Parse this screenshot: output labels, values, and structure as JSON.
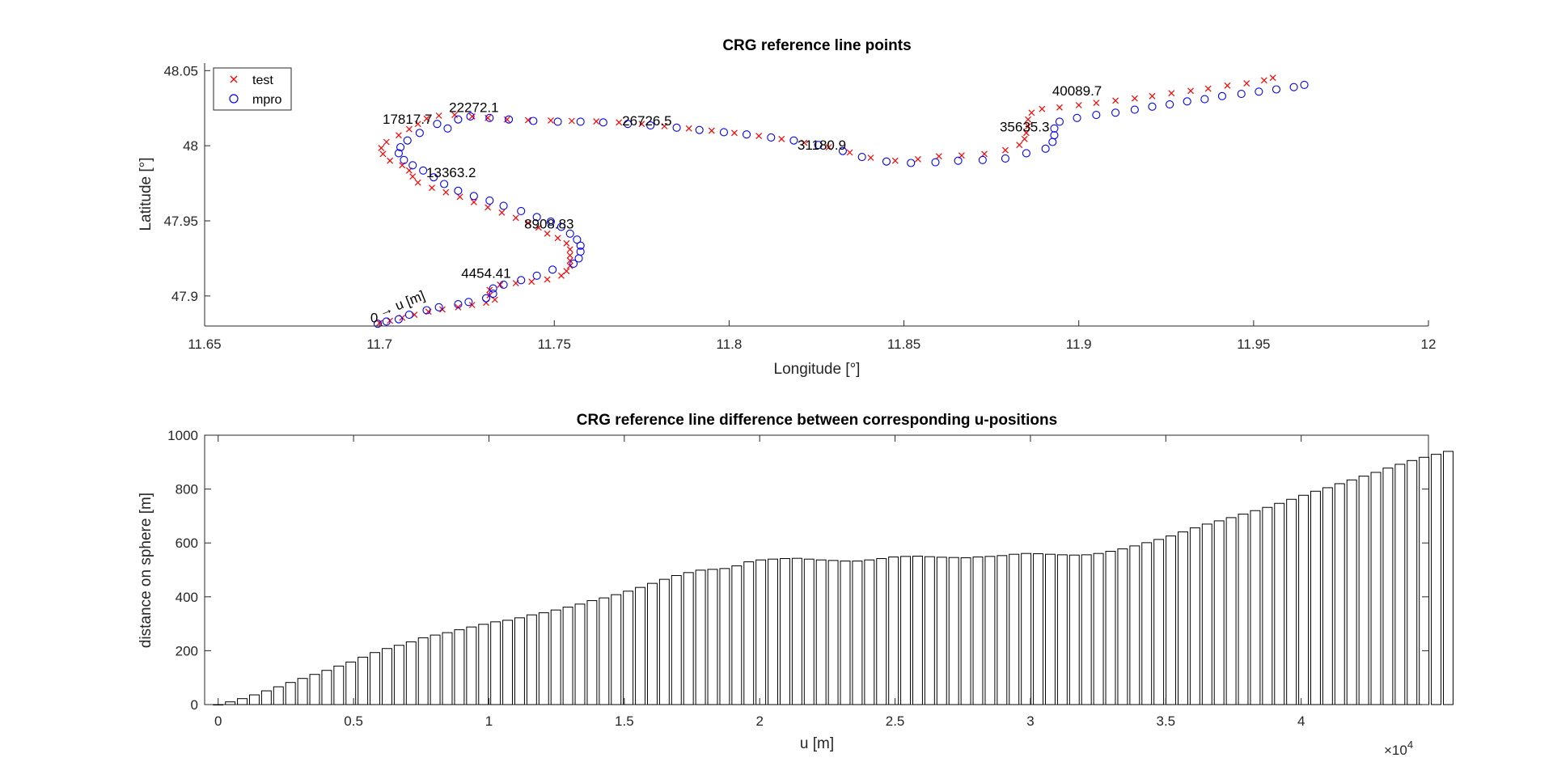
{
  "chart_data": [
    {
      "type": "scatter",
      "title": "CRG reference line points",
      "xlabel": "Longitude [°]",
      "ylabel": "Latitude [°]",
      "xlim": [
        11.65,
        12.0
      ],
      "ylim": [
        47.88,
        48.055
      ],
      "xticks": [
        11.65,
        11.7,
        11.75,
        11.8,
        11.85,
        11.9,
        11.95,
        12
      ],
      "xtick_labels": [
        "11.65",
        "11.7",
        "11.75",
        "11.8",
        "11.85",
        "11.9",
        "11.95",
        "12"
      ],
      "yticks": [
        47.9,
        47.95,
        48.0,
        48.05
      ],
      "ytick_labels": [
        "47.9",
        "47.95",
        "48",
        "48.05"
      ],
      "legend_position": "top-left",
      "grid": false,
      "series": [
        {
          "name": "test",
          "marker": "x",
          "color": "#ff0000",
          "points": [
            [
              11.7,
              47.882
            ],
            [
              11.703,
              47.8835
            ],
            [
              11.7065,
              47.8855
            ],
            [
              11.71,
              47.8875
            ],
            [
              11.714,
              47.8895
            ],
            [
              11.718,
              47.891
            ],
            [
              11.7225,
              47.8925
            ],
            [
              11.7265,
              47.894
            ],
            [
              11.7305,
              47.8955
            ],
            [
              11.733,
              47.8975
            ],
            [
              11.7315,
              47.9005
            ],
            [
              11.7315,
              47.904
            ],
            [
              11.7345,
              47.9075
            ],
            [
              11.739,
              47.9085
            ],
            [
              11.7435,
              47.9095
            ],
            [
              11.748,
              47.911
            ],
            [
              11.752,
              47.9135
            ],
            [
              11.7535,
              47.9165
            ],
            [
              11.7545,
              47.92
            ],
            [
              11.7545,
              47.9235
            ],
            [
              11.7545,
              47.927
            ],
            [
              11.7545,
              47.931
            ],
            [
              11.7535,
              47.935
            ],
            [
              11.751,
              47.9385
            ],
            [
              11.748,
              47.9415
            ],
            [
              11.7455,
              47.9455
            ],
            [
              11.7425,
              47.9485
            ],
            [
              11.739,
              47.952
            ],
            [
              11.735,
              47.9555
            ],
            [
              11.731,
              47.959
            ],
            [
              11.727,
              47.9625
            ],
            [
              11.723,
              47.966
            ],
            [
              11.719,
              47.969
            ],
            [
              11.715,
              47.972
            ],
            [
              11.711,
              47.9755
            ],
            [
              11.7095,
              47.9795
            ],
            [
              11.7085,
              47.9835
            ],
            [
              11.7065,
              47.987
            ],
            [
              11.703,
              47.99
            ],
            [
              11.701,
              47.9945
            ],
            [
              11.7005,
              47.9985
            ],
            [
              11.702,
              48.0025
            ],
            [
              11.7055,
              48.007
            ],
            [
              11.7085,
              48.011
            ],
            [
              11.711,
              48.0145
            ],
            [
              11.7135,
              48.018
            ],
            [
              11.717,
              48.02
            ],
            [
              11.7215,
              48.0205
            ],
            [
              11.7265,
              48.0195
            ],
            [
              11.731,
              48.0185
            ],
            [
              11.7365,
              48.0175
            ],
            [
              11.7425,
              48.017
            ],
            [
              11.749,
              48.0168
            ],
            [
              11.755,
              48.0165
            ],
            [
              11.762,
              48.0162
            ],
            [
              11.7685,
              48.0155
            ],
            [
              11.775,
              48.0145
            ],
            [
              11.7815,
              48.013
            ],
            [
              11.7885,
              48.0115
            ],
            [
              11.795,
              48.01
            ],
            [
              11.8015,
              48.0085
            ],
            [
              11.8085,
              48.0065
            ],
            [
              11.815,
              48.0045
            ],
            [
              11.8215,
              48.002
            ],
            [
              11.8285,
              47.999
            ],
            [
              11.8345,
              47.9955
            ],
            [
              11.8405,
              47.992
            ],
            [
              11.8475,
              47.99
            ],
            [
              11.854,
              47.991
            ],
            [
              11.86,
              47.993
            ],
            [
              11.8665,
              47.9935
            ],
            [
              11.873,
              47.9945
            ],
            [
              11.879,
              47.997
            ],
            [
              11.883,
              48.0005
            ],
            [
              11.8845,
              48.0045
            ],
            [
              11.885,
              48.0085
            ],
            [
              11.8855,
              48.013
            ],
            [
              11.8855,
              48.0175
            ],
            [
              11.8865,
              48.022
            ],
            [
              11.8895,
              48.0245
            ],
            [
              11.8945,
              48.0255
            ],
            [
              11.9,
              48.027
            ],
            [
              11.905,
              48.0285
            ],
            [
              11.9105,
              48.03
            ],
            [
              11.916,
              48.0315
            ],
            [
              11.921,
              48.033
            ],
            [
              11.9265,
              48.035
            ],
            [
              11.932,
              48.0365
            ],
            [
              11.937,
              48.038
            ],
            [
              11.9425,
              48.04
            ],
            [
              11.948,
              48.0415
            ],
            [
              11.953,
              48.0435
            ],
            [
              11.9555,
              48.0452
            ]
          ]
        },
        {
          "name": "mpro",
          "marker": "o",
          "color": "#0000ff",
          "points": [
            [
              11.6995,
              47.8815
            ],
            [
              11.702,
              47.883
            ],
            [
              11.7055,
              47.8845
            ],
            [
              11.7085,
              47.8875
            ],
            [
              11.7135,
              47.8905
            ],
            [
              11.717,
              47.8925
            ],
            [
              11.7225,
              47.8945
            ],
            [
              11.7255,
              47.896
            ],
            [
              11.7305,
              47.8985
            ],
            [
              11.7325,
              47.9015
            ],
            [
              11.7325,
              47.905
            ],
            [
              11.7355,
              47.9075
            ],
            [
              11.7405,
              47.9105
            ],
            [
              11.745,
              47.9135
            ],
            [
              11.7495,
              47.9175
            ],
            [
              11.7555,
              47.9215
            ],
            [
              11.757,
              47.925
            ],
            [
              11.7575,
              47.9295
            ],
            [
              11.7575,
              47.9335
            ],
            [
              11.7565,
              47.9375
            ],
            [
              11.7545,
              47.9415
            ],
            [
              11.752,
              47.946
            ],
            [
              11.749,
              47.9495
            ],
            [
              11.745,
              47.9525
            ],
            [
              11.7405,
              47.9565
            ],
            [
              11.7355,
              47.96
            ],
            [
              11.7315,
              47.9635
            ],
            [
              11.727,
              47.9665
            ],
            [
              11.7225,
              47.97
            ],
            [
              11.7185,
              47.9745
            ],
            [
              11.7155,
              47.979
            ],
            [
              11.7125,
              47.9835
            ],
            [
              11.7095,
              47.987
            ],
            [
              11.707,
              47.9905
            ],
            [
              11.7055,
              47.995
            ],
            [
              11.706,
              47.999
            ],
            [
              11.708,
              48.0035
            ],
            [
              11.7115,
              48.0085
            ],
            [
              11.7165,
              48.0145
            ],
            [
              11.7195,
              48.0115
            ],
            [
              11.7225,
              48.0175
            ],
            [
              11.726,
              48.0195
            ],
            [
              11.7315,
              48.0185
            ],
            [
              11.737,
              48.0175
            ],
            [
              11.744,
              48.0165
            ],
            [
              11.751,
              48.016
            ],
            [
              11.7575,
              48.016
            ],
            [
              11.764,
              48.0155
            ],
            [
              11.771,
              48.0145
            ],
            [
              11.7775,
              48.0135
            ],
            [
              11.785,
              48.012
            ],
            [
              11.7915,
              48.0105
            ],
            [
              11.7985,
              48.009
            ],
            [
              11.805,
              48.0075
            ],
            [
              11.812,
              48.0055
            ],
            [
              11.8185,
              48.0035
            ],
            [
              11.8255,
              48.0005
            ],
            [
              11.8325,
              47.9965
            ],
            [
              11.838,
              47.9925
            ],
            [
              11.845,
              47.9895
            ],
            [
              11.852,
              47.9885
            ],
            [
              11.859,
              47.989
            ],
            [
              11.8655,
              47.99
            ],
            [
              11.8725,
              47.9905
            ],
            [
              11.879,
              47.9915
            ],
            [
              11.885,
              47.995
            ],
            [
              11.8905,
              47.998
            ],
            [
              11.8925,
              48.0025
            ],
            [
              11.893,
              48.007
            ],
            [
              11.893,
              48.0115
            ],
            [
              11.8945,
              48.016
            ],
            [
              11.8995,
              48.0185
            ],
            [
              11.905,
              48.0205
            ],
            [
              11.9105,
              48.022
            ],
            [
              11.916,
              48.024
            ],
            [
              11.921,
              48.026
            ],
            [
              11.926,
              48.0275
            ],
            [
              11.931,
              48.0295
            ],
            [
              11.936,
              48.031
            ],
            [
              11.941,
              48.033
            ],
            [
              11.9465,
              48.0345
            ],
            [
              11.9515,
              48.036
            ],
            [
              11.9565,
              48.0375
            ],
            [
              11.9615,
              48.039
            ],
            [
              11.9645,
              48.0405
            ]
          ]
        }
      ],
      "annotations": [
        {
          "text": "0",
          "x": 11.6985,
          "y": 47.8825
        },
        {
          "text": "→ u [m]",
          "x": 11.7005,
          "y": 47.886
        },
        {
          "text": "4454.41",
          "x": 11.7305,
          "y": 47.912
        },
        {
          "text": "8908.83",
          "x": 11.7485,
          "y": 47.945
        },
        {
          "text": "13363.2",
          "x": 11.7205,
          "y": 47.979
        },
        {
          "text": "17817.7",
          "x": 11.708,
          "y": 48.0145
        },
        {
          "text": "22272.1",
          "x": 11.727,
          "y": 48.0225
        },
        {
          "text": "26726.5",
          "x": 11.7765,
          "y": 48.0135
        },
        {
          "text": "31180.9",
          "x": 11.8265,
          "y": 47.9975
        },
        {
          "text": "35635.3",
          "x": 11.8845,
          "y": 48.0095
        },
        {
          "text": "40089.7",
          "x": 11.8995,
          "y": 48.0335
        }
      ]
    },
    {
      "type": "bar",
      "title": "CRG reference line difference between corresponding u-positions",
      "xlabel": "u [m]",
      "ylabel": "distance on sphere [m]",
      "x_exponent_label": "×10",
      "x_exponent": "4",
      "xlim": [
        -500,
        44700
      ],
      "ylim": [
        0,
        1000
      ],
      "xticks": [
        0,
        5000,
        10000,
        15000,
        20000,
        25000,
        30000,
        35000,
        40000
      ],
      "xtick_labels": [
        "0",
        "0.5",
        "1",
        "1.5",
        "2",
        "2.5",
        "3",
        "3.5",
        "4"
      ],
      "yticks": [
        0,
        200,
        400,
        600,
        800,
        1000
      ],
      "ytick_labels": [
        "0",
        "200",
        "400",
        "600",
        "800",
        "1000"
      ],
      "bar_color": "#ffffff",
      "edge_color": "#000000",
      "bar_step": 445.4,
      "values": [
        0,
        10,
        22,
        36,
        51,
        66,
        82,
        97,
        112,
        127,
        143,
        158,
        176,
        193,
        208,
        220,
        233,
        248,
        258,
        267,
        278,
        288,
        298,
        307,
        313,
        322,
        333,
        341,
        351,
        362,
        373,
        386,
        396,
        408,
        421,
        435,
        450,
        465,
        479,
        490,
        499,
        502,
        505,
        515,
        530,
        537,
        540,
        542,
        543,
        540,
        537,
        535,
        533,
        533,
        537,
        542,
        548,
        550,
        551,
        549,
        547,
        546,
        545,
        548,
        550,
        553,
        558,
        561,
        560,
        558,
        556,
        555,
        556,
        561,
        569,
        578,
        589,
        601,
        613,
        626,
        641,
        656,
        670,
        682,
        694,
        707,
        720,
        732,
        747,
        762,
        777,
        792,
        805,
        820,
        834,
        848,
        862,
        878,
        892,
        906,
        918,
        929,
        940
      ]
    }
  ]
}
